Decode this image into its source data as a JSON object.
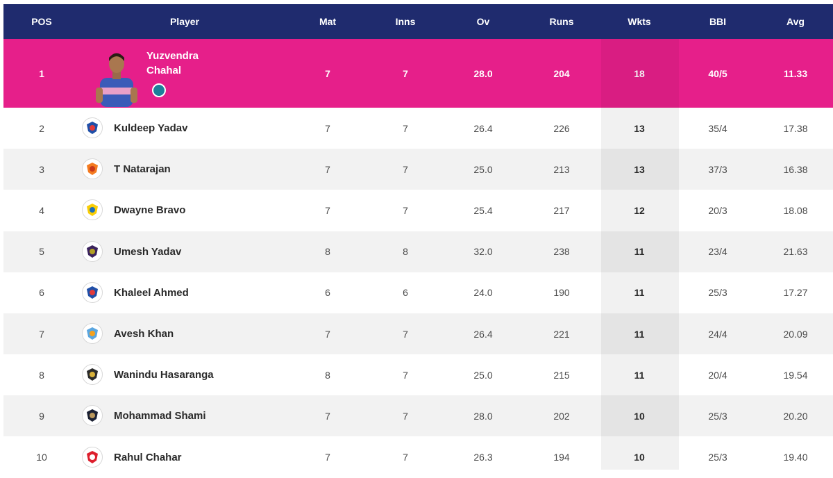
{
  "headers": {
    "pos": "POS",
    "player": "Player",
    "mat": "Mat",
    "inns": "Inns",
    "ov": "Ov",
    "runs": "Runs",
    "wkts": "Wkts",
    "bbi": "BBI",
    "avg": "Avg"
  },
  "colors": {
    "header_bg": "#1f2b6e",
    "leader_bg": "#e61f8a",
    "alt_row_bg": "#f2f2f2"
  },
  "rows": [
    {
      "pos": "1",
      "player": "Yuzvendra Chahal",
      "player_line1": "Yuzvendra",
      "player_line2": "Chahal",
      "team_icon": "player-photo",
      "mat": "7",
      "inns": "7",
      "ov": "28.0",
      "runs": "204",
      "wkts": "18",
      "bbi": "40/5",
      "avg": "11.33"
    },
    {
      "pos": "2",
      "player": "Kuldeep Yadav",
      "team_icon": "delhi-capitals-logo-icon",
      "mat": "7",
      "inns": "7",
      "ov": "26.4",
      "runs": "226",
      "wkts": "13",
      "bbi": "35/4",
      "avg": "17.38"
    },
    {
      "pos": "3",
      "player": "T Natarajan",
      "team_icon": "sunrisers-hyderabad-logo-icon",
      "mat": "7",
      "inns": "7",
      "ov": "25.0",
      "runs": "213",
      "wkts": "13",
      "bbi": "37/3",
      "avg": "16.38"
    },
    {
      "pos": "4",
      "player": "Dwayne Bravo",
      "team_icon": "chennai-super-kings-logo-icon",
      "mat": "7",
      "inns": "7",
      "ov": "25.4",
      "runs": "217",
      "wkts": "12",
      "bbi": "20/3",
      "avg": "18.08"
    },
    {
      "pos": "5",
      "player": "Umesh Yadav",
      "team_icon": "kolkata-knight-riders-logo-icon",
      "mat": "8",
      "inns": "8",
      "ov": "32.0",
      "runs": "238",
      "wkts": "11",
      "bbi": "23/4",
      "avg": "21.63"
    },
    {
      "pos": "6",
      "player": "Khaleel Ahmed",
      "team_icon": "delhi-capitals-logo-icon",
      "mat": "6",
      "inns": "6",
      "ov": "24.0",
      "runs": "190",
      "wkts": "11",
      "bbi": "25/3",
      "avg": "17.27"
    },
    {
      "pos": "7",
      "player": "Avesh Khan",
      "team_icon": "lucknow-super-giants-logo-icon",
      "mat": "7",
      "inns": "7",
      "ov": "26.4",
      "runs": "221",
      "wkts": "11",
      "bbi": "24/4",
      "avg": "20.09"
    },
    {
      "pos": "8",
      "player": "Wanindu Hasaranga",
      "team_icon": "royal-challengers-logo-icon",
      "mat": "8",
      "inns": "7",
      "ov": "25.0",
      "runs": "215",
      "wkts": "11",
      "bbi": "20/4",
      "avg": "19.54"
    },
    {
      "pos": "9",
      "player": "Mohammad Shami",
      "team_icon": "gujarat-titans-logo-icon",
      "mat": "7",
      "inns": "7",
      "ov": "28.0",
      "runs": "202",
      "wkts": "10",
      "bbi": "25/3",
      "avg": "20.20"
    },
    {
      "pos": "10",
      "player": "Rahul Chahar",
      "team_icon": "punjab-kings-logo-icon",
      "mat": "7",
      "inns": "7",
      "ov": "26.3",
      "runs": "194",
      "wkts": "10",
      "bbi": "25/3",
      "avg": "19.40"
    }
  ]
}
